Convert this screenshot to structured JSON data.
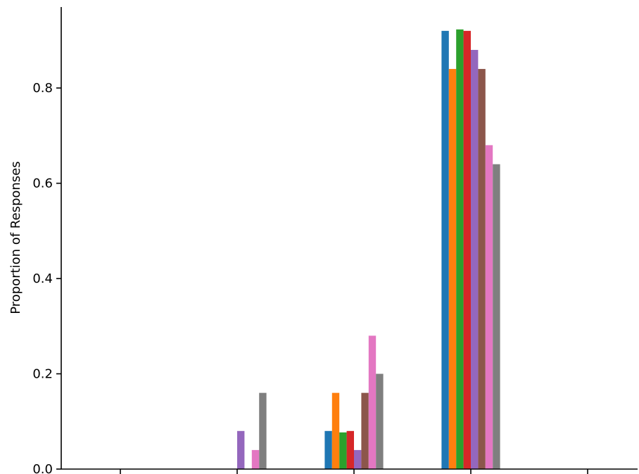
{
  "chart_data": {
    "type": "bar",
    "title": "",
    "xlabel": "",
    "ylabel": "Proportion of Responses",
    "ylim": [
      0,
      0.97
    ],
    "yticks": [
      0.0,
      0.2,
      0.4,
      0.6,
      0.8
    ],
    "ytick_labels": [
      "0.0",
      "0.2",
      "0.4",
      "0.6",
      "0.8"
    ],
    "categories": [
      "",
      "",
      "",
      "",
      ""
    ],
    "grid": false,
    "legend": "none",
    "series": [
      {
        "color": "#1f77b4",
        "values": [
          0,
          0,
          0.08,
          0.92,
          0
        ]
      },
      {
        "color": "#ff7f0e",
        "values": [
          0,
          0,
          0.16,
          0.84,
          0
        ]
      },
      {
        "color": "#2ca02c",
        "values": [
          0,
          0,
          0.077,
          0.923,
          0
        ]
      },
      {
        "color": "#d62728",
        "values": [
          0,
          0,
          0.08,
          0.92,
          0
        ]
      },
      {
        "color": "#9467bd",
        "values": [
          0,
          0.08,
          0.04,
          0.88,
          0
        ]
      },
      {
        "color": "#8c564b",
        "values": [
          0,
          0,
          0.16,
          0.84,
          0
        ]
      },
      {
        "color": "#e377c2",
        "values": [
          0,
          0.04,
          0.28,
          0.68,
          0
        ]
      },
      {
        "color": "#7f7f7f",
        "values": [
          0,
          0.16,
          0.2,
          0.64,
          0
        ]
      }
    ]
  }
}
